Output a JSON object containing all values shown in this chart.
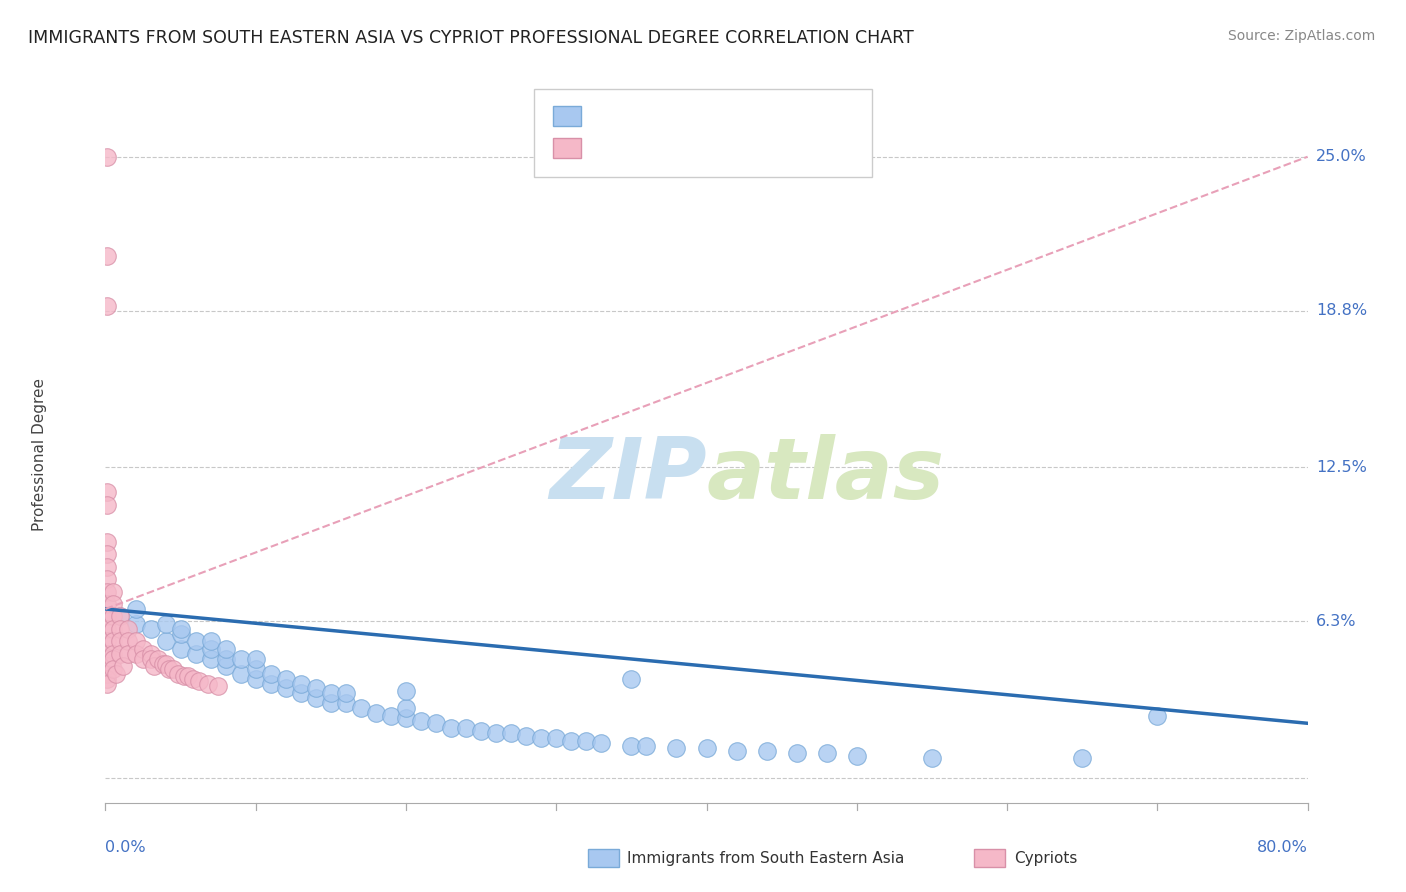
{
  "title": "IMMIGRANTS FROM SOUTH EASTERN ASIA VS CYPRIOT PROFESSIONAL DEGREE CORRELATION CHART",
  "source": "Source: ZipAtlas.com",
  "ylabel": "Professional Degree",
  "ytick_vals": [
    0.0,
    6.3,
    12.5,
    18.8,
    25.0
  ],
  "ytick_labels": [
    "",
    "6.3%",
    "12.5%",
    "18.8%",
    "25.0%"
  ],
  "xmin": 0.0,
  "xmax": 80.0,
  "ymin": -1.0,
  "ymax": 27.0,
  "blue_color": "#a8c8f0",
  "blue_edge_color": "#7aaad8",
  "blue_line_color": "#2b6cb0",
  "pink_color": "#f5b8c8",
  "pink_edge_color": "#d890a8",
  "pink_line_color": "#e06080",
  "pink_trend_color": "#e8a0b8",
  "blue_trend_x": [
    0.0,
    80.0
  ],
  "blue_trend_y": [
    6.8,
    2.2
  ],
  "pink_trend_x": [
    0.0,
    80.0
  ],
  "pink_trend_y": [
    6.8,
    25.0
  ],
  "blue_x": [
    1,
    2,
    2,
    3,
    4,
    4,
    5,
    5,
    5,
    6,
    6,
    7,
    7,
    7,
    8,
    8,
    8,
    9,
    9,
    10,
    10,
    10,
    11,
    11,
    12,
    12,
    13,
    13,
    14,
    14,
    15,
    15,
    16,
    16,
    17,
    18,
    19,
    20,
    20,
    21,
    22,
    23,
    24,
    25,
    26,
    27,
    28,
    29,
    30,
    31,
    32,
    33,
    35,
    36,
    38,
    40,
    42,
    44,
    46,
    48,
    50,
    55,
    65,
    70,
    20,
    35
  ],
  "blue_y": [
    6.5,
    6.2,
    6.8,
    6.0,
    5.5,
    6.2,
    5.2,
    5.8,
    6.0,
    5.0,
    5.5,
    4.8,
    5.2,
    5.5,
    4.5,
    4.8,
    5.2,
    4.2,
    4.8,
    4.0,
    4.4,
    4.8,
    3.8,
    4.2,
    3.6,
    4.0,
    3.4,
    3.8,
    3.2,
    3.6,
    3.0,
    3.4,
    3.0,
    3.4,
    2.8,
    2.6,
    2.5,
    2.4,
    2.8,
    2.3,
    2.2,
    2.0,
    2.0,
    1.9,
    1.8,
    1.8,
    1.7,
    1.6,
    1.6,
    1.5,
    1.5,
    1.4,
    1.3,
    1.3,
    1.2,
    1.2,
    1.1,
    1.1,
    1.0,
    1.0,
    0.9,
    0.8,
    0.8,
    2.5,
    3.5,
    4.0
  ],
  "pink_x": [
    0.1,
    0.1,
    0.1,
    0.1,
    0.1,
    0.1,
    0.1,
    0.1,
    0.1,
    0.1,
    0.1,
    0.1,
    0.1,
    0.1,
    0.1,
    0.1,
    0.1,
    0.1,
    0.1,
    0.1,
    0.5,
    0.5,
    0.5,
    0.5,
    0.5,
    0.5,
    0.5,
    0.5,
    0.7,
    1.0,
    1.0,
    1.0,
    1.0,
    1.2,
    1.5,
    1.5,
    1.5,
    2.0,
    2.0,
    2.5,
    2.5,
    3.0,
    3.0,
    3.2,
    3.5,
    3.8,
    4.0,
    4.2,
    4.5,
    4.8,
    5.2,
    5.5,
    5.8,
    6.2,
    6.8,
    7.5
  ],
  "pink_y": [
    25.0,
    21.0,
    19.0,
    11.5,
    11.0,
    9.5,
    9.0,
    8.5,
    8.0,
    7.5,
    7.0,
    6.5,
    6.0,
    5.5,
    5.0,
    4.8,
    4.5,
    4.2,
    4.0,
    3.8,
    7.5,
    7.0,
    6.5,
    6.0,
    5.5,
    5.0,
    4.8,
    4.4,
    4.2,
    6.5,
    6.0,
    5.5,
    5.0,
    4.5,
    6.0,
    5.5,
    5.0,
    5.5,
    5.0,
    5.2,
    4.8,
    5.0,
    4.8,
    4.5,
    4.8,
    4.6,
    4.6,
    4.4,
    4.4,
    4.2,
    4.1,
    4.1,
    4.0,
    3.9,
    3.8,
    3.7
  ]
}
